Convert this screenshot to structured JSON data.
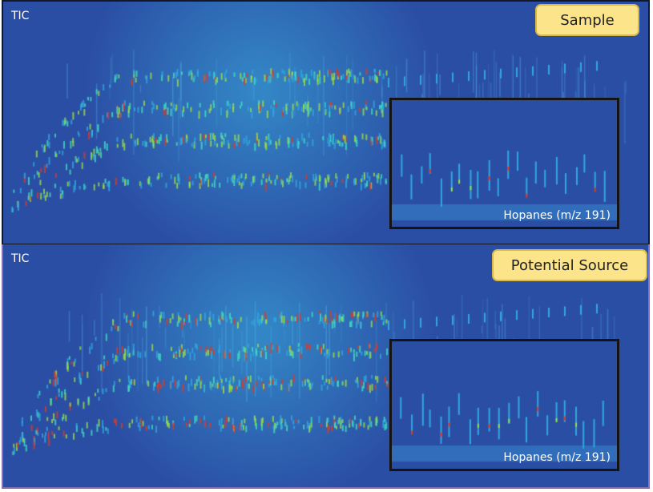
{
  "chart_data": {
    "type": "heatmap",
    "title": "",
    "panels": [
      {
        "name": "Sample",
        "channel_label": "TIC",
        "inset_label": "Hopanes (m/z 191)"
      },
      {
        "name": "Potential Source",
        "channel_label": "TIC",
        "inset_label": "Hopanes (m/z 191)"
      }
    ],
    "colormap": [
      "#2b4ea5",
      "#2fa8e0",
      "#3fe0c0",
      "#9ee040",
      "#e03a20"
    ]
  }
}
